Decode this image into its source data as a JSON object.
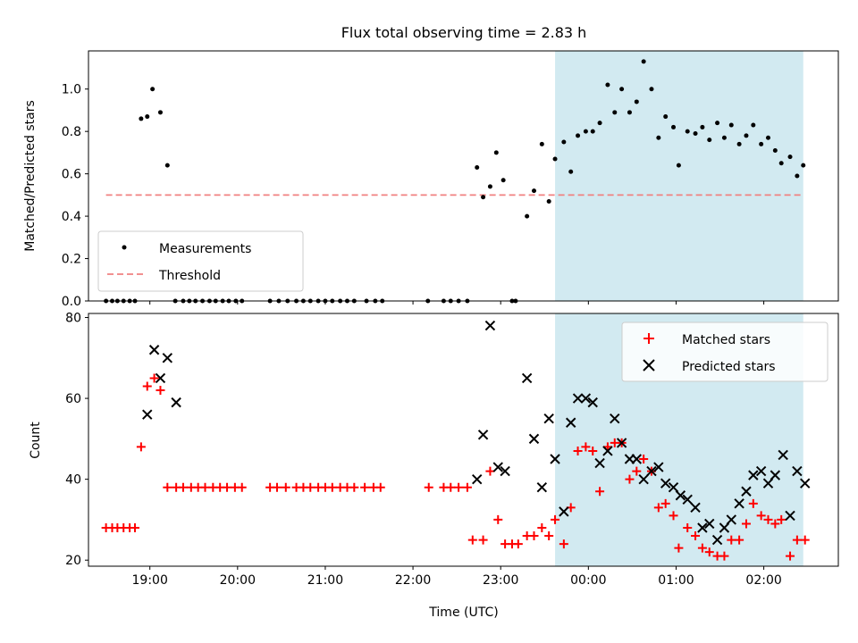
{
  "figure_title": "Flux total observing time = 2.83 h",
  "colors": {
    "shade": "#add8e6",
    "threshold": "#f08080",
    "matched": "#ff0000",
    "predicted": "#000000",
    "measurement": "#000000"
  },
  "chart_data": [
    {
      "type": "scatter",
      "ylabel": "Matched/Predicted stars",
      "xlim": [
        18.3,
        26.85
      ],
      "ylim": [
        0,
        1.18
      ],
      "x_ticks": [
        19,
        20,
        21,
        22,
        23,
        24,
        25,
        26
      ],
      "y_ticks": [
        0.0,
        0.2,
        0.4,
        0.6,
        0.8,
        1.0
      ],
      "y_tick_labels": [
        "0.0",
        "0.2",
        "0.4",
        "0.6",
        "0.8",
        "1.0"
      ],
      "shaded_region": [
        23.62,
        26.45
      ],
      "legend": {
        "placement": "lower-left",
        "entries": [
          "Measurements",
          "Threshold"
        ]
      },
      "threshold": {
        "name": "Threshold",
        "y": 0.5,
        "x": [
          18.5,
          26.45
        ]
      },
      "series": [
        {
          "name": "Measurements",
          "x": [
            18.5,
            18.57,
            18.63,
            18.7,
            18.77,
            18.83,
            18.9,
            18.97,
            19.03,
            19.12,
            19.2,
            19.29,
            19.38,
            19.45,
            19.52,
            19.6,
            19.68,
            19.75,
            19.83,
            19.9,
            19.98,
            20.05,
            20.37,
            20.47,
            20.57,
            20.67,
            20.75,
            20.83,
            20.92,
            21.0,
            21.08,
            21.17,
            21.25,
            21.33,
            21.47,
            21.57,
            21.65,
            22.17,
            22.35,
            22.43,
            22.52,
            22.62,
            22.73,
            22.8,
            22.88,
            22.95,
            23.03,
            23.13,
            23.17,
            23.3,
            23.38,
            23.47,
            23.55,
            23.62,
            23.72,
            23.8,
            23.88,
            23.97,
            24.05,
            24.13,
            24.22,
            24.3,
            24.38,
            24.47,
            24.55,
            24.63,
            24.72,
            24.8,
            24.88,
            24.97,
            25.03,
            25.13,
            25.22,
            25.3,
            25.38,
            25.47,
            25.55,
            25.63,
            25.72,
            25.8,
            25.88,
            25.97,
            26.05,
            26.13,
            26.2,
            26.3,
            26.38,
            26.45
          ],
          "y": [
            0,
            0,
            0,
            0,
            0,
            0,
            0.86,
            0.87,
            1.0,
            0.89,
            0.64,
            0,
            0,
            0,
            0,
            0,
            0,
            0,
            0,
            0,
            0,
            0,
            0,
            0,
            0,
            0,
            0,
            0,
            0,
            0,
            0,
            0,
            0,
            0,
            0,
            0,
            0,
            0,
            0,
            0,
            0,
            0,
            0.63,
            0.49,
            0.54,
            0.7,
            0.57,
            0,
            0,
            0.4,
            0.52,
            0.74,
            0.47,
            0.67,
            0.75,
            0.61,
            0.78,
            0.8,
            0.8,
            0.84,
            1.02,
            0.89,
            1.0,
            0.89,
            0.94,
            1.13,
            1.0,
            0.77,
            0.87,
            0.82,
            0.64,
            0.8,
            0.79,
            0.82,
            0.76,
            0.84,
            0.77,
            0.83,
            0.74,
            0.78,
            0.83,
            0.74,
            0.77,
            0.71,
            0.65,
            0.68,
            0.59,
            0.64
          ]
        }
      ]
    },
    {
      "type": "scatter",
      "xlabel": "Time (UTC)",
      "ylabel": "Count",
      "xlim": [
        18.3,
        26.85
      ],
      "ylim": [
        18.5,
        81
      ],
      "x_ticks": [
        19,
        20,
        21,
        22,
        23,
        24,
        25,
        26
      ],
      "x_tick_labels": [
        "19:00",
        "20:00",
        "21:00",
        "22:00",
        "23:00",
        "00:00",
        "01:00",
        "02:00"
      ],
      "y_ticks": [
        20,
        40,
        60,
        80
      ],
      "y_tick_labels": [
        "20",
        "40",
        "60",
        "80"
      ],
      "shaded_region": [
        23.62,
        26.45
      ],
      "legend": {
        "placement": "upper-right",
        "entries": [
          "Matched stars",
          "Predicted stars"
        ]
      },
      "series": [
        {
          "name": "Matched stars",
          "x": [
            18.5,
            18.57,
            18.63,
            18.7,
            18.77,
            18.83,
            18.9,
            18.97,
            19.05,
            19.12,
            19.2,
            19.3,
            19.38,
            19.47,
            19.55,
            19.63,
            19.72,
            19.8,
            19.88,
            19.97,
            20.05,
            20.37,
            20.45,
            20.55,
            20.67,
            20.75,
            20.83,
            20.92,
            21.0,
            21.08,
            21.17,
            21.25,
            21.33,
            21.45,
            21.55,
            21.63,
            22.18,
            22.35,
            22.43,
            22.52,
            22.62,
            22.68,
            22.8,
            22.88,
            22.97,
            23.05,
            23.13,
            23.2,
            23.3,
            23.38,
            23.47,
            23.55,
            23.62,
            23.72,
            23.8,
            23.88,
            23.97,
            24.05,
            24.13,
            24.22,
            24.3,
            24.38,
            24.47,
            24.55,
            24.63,
            24.72,
            24.8,
            24.88,
            24.97,
            25.03,
            25.13,
            25.22,
            25.3,
            25.38,
            25.47,
            25.55,
            25.63,
            25.72,
            25.8,
            25.88,
            25.97,
            26.05,
            26.13,
            26.2,
            26.3,
            26.38,
            26.47
          ],
          "y": [
            28,
            28,
            28,
            28,
            28,
            28,
            48,
            63,
            65,
            62,
            38,
            38,
            38,
            38,
            38,
            38,
            38,
            38,
            38,
            38,
            38,
            38,
            38,
            38,
            38,
            38,
            38,
            38,
            38,
            38,
            38,
            38,
            38,
            38,
            38,
            38,
            38,
            38,
            38,
            38,
            38,
            25,
            25,
            42,
            30,
            24,
            24,
            24,
            26,
            26,
            28,
            26,
            30,
            24,
            33,
            47,
            48,
            47,
            37,
            48,
            49,
            49,
            40,
            42,
            45,
            42,
            33,
            34,
            31,
            23,
            28,
            26,
            23,
            22,
            21,
            21,
            25,
            25,
            29,
            34,
            31,
            30,
            29,
            30,
            21,
            25,
            25
          ]
        },
        {
          "name": "Predicted stars",
          "x": [
            18.97,
            19.05,
            19.12,
            19.2,
            19.3,
            22.73,
            22.8,
            22.88,
            22.97,
            23.05,
            23.3,
            23.38,
            23.47,
            23.55,
            23.62,
            23.72,
            23.8,
            23.88,
            23.97,
            24.05,
            24.13,
            24.22,
            24.3,
            24.38,
            24.47,
            24.55,
            24.63,
            24.72,
            24.8,
            24.88,
            24.97,
            25.05,
            25.13,
            25.22,
            25.3,
            25.38,
            25.47,
            25.55,
            25.63,
            25.72,
            25.8,
            25.88,
            25.97,
            26.05,
            26.13,
            26.22,
            26.3,
            26.38,
            26.47
          ],
          "y": [
            56,
            72,
            65,
            70,
            59,
            40,
            51,
            78,
            43,
            42,
            65,
            50,
            38,
            55,
            45,
            32,
            54,
            60,
            60,
            59,
            44,
            47,
            55,
            49,
            45,
            45,
            40,
            42,
            43,
            39,
            38,
            36,
            35,
            33,
            28,
            29,
            25,
            28,
            30,
            34,
            37,
            41,
            42,
            39,
            41,
            46,
            31,
            42,
            39
          ]
        }
      ]
    }
  ]
}
